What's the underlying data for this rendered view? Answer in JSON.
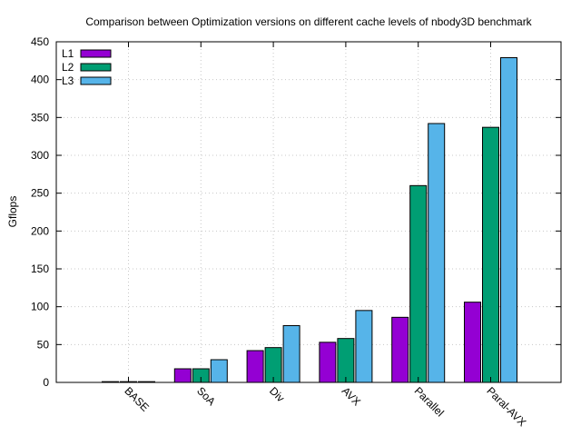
{
  "chart_data": {
    "type": "bar",
    "title": "Comparison between Optimization versions on different cache levels of nbody3D benchmark",
    "xlabel": "",
    "ylabel": "Gflops",
    "ylim": [
      0,
      450
    ],
    "yticks": [
      0,
      50,
      100,
      150,
      200,
      250,
      300,
      350,
      400,
      450
    ],
    "grid": true,
    "legend_position": "top-left",
    "categories": [
      "BASE",
      "SoA",
      "Div",
      "AVX",
      "Parallel",
      "Paral-AVX"
    ],
    "series": [
      {
        "name": "L1",
        "color": "#9400d3",
        "values": [
          1,
          18,
          42,
          53,
          86,
          106
        ]
      },
      {
        "name": "L2",
        "color": "#009e73",
        "values": [
          1,
          18,
          46,
          58,
          260,
          337
        ]
      },
      {
        "name": "L3",
        "color": "#56b4e9",
        "values": [
          1,
          30,
          75,
          95,
          342,
          429
        ]
      }
    ]
  }
}
